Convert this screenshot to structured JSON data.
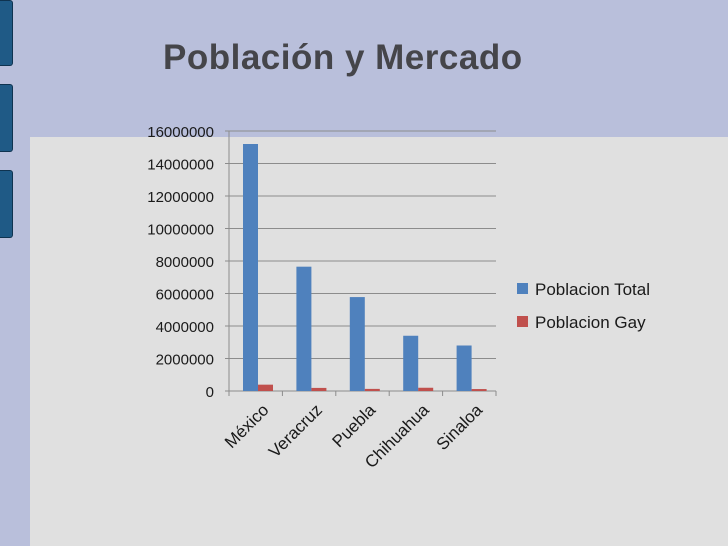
{
  "slide": {
    "title": "Población y Mercado"
  },
  "chart_data": {
    "type": "bar",
    "categories": [
      "México",
      "Veracruz",
      "Puebla",
      "Chihuahua",
      "Sinaloa"
    ],
    "series": [
      {
        "name": "Poblacion Total",
        "color": "#4f81bd",
        "values": [
          15200000,
          7650000,
          5780000,
          3400000,
          2800000
        ]
      },
      {
        "name": "Poblacion Gay",
        "color": "#c0504d",
        "values": [
          390000,
          190000,
          130000,
          200000,
          120000
        ]
      }
    ],
    "yticks": [
      "0",
      "2000000",
      "4000000",
      "6000000",
      "8000000",
      "10000000",
      "12000000",
      "14000000",
      "16000000"
    ],
    "ylim": [
      0,
      16000000
    ],
    "grid": true,
    "legend": "right"
  }
}
